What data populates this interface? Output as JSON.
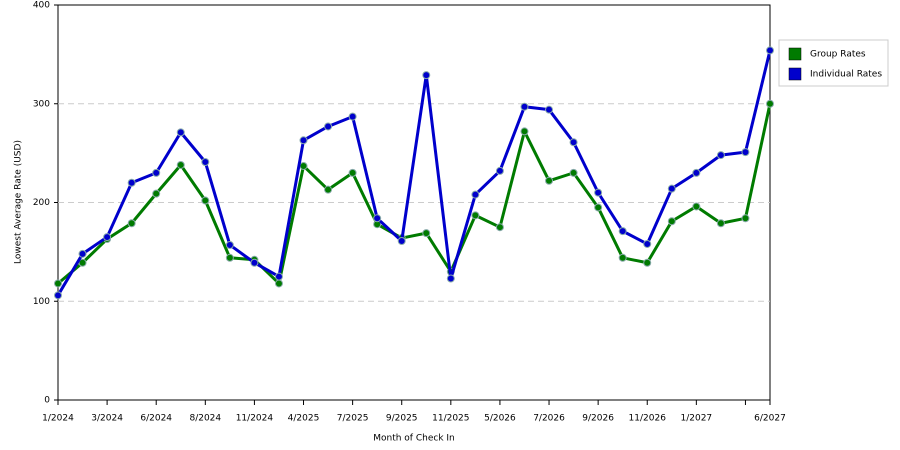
{
  "chart_data": {
    "type": "line",
    "x_label": "Month of Check In",
    "y_label": "Lowest Average Rate (USD)",
    "categories": [
      "1/2024",
      null,
      "3/2024",
      null,
      "6/2024",
      null,
      "8/2024",
      null,
      "11/2024",
      null,
      "4/2025",
      null,
      "7/2025",
      null,
      "9/2025",
      null,
      "11/2025",
      null,
      "5/2026",
      null,
      "7/2026",
      null,
      "9/2026",
      null,
      "11/2026",
      null,
      "1/2027",
      null,
      null,
      "6/2027"
    ],
    "series": [
      {
        "name": "Group Rates",
        "color": "#007b00",
        "values": [
          118,
          139,
          163,
          179,
          209,
          238,
          202,
          144,
          142,
          118,
          237,
          213,
          230,
          178,
          164,
          169,
          130,
          187,
          175,
          272,
          222,
          230,
          195,
          144,
          139,
          181,
          196,
          179,
          184,
          300
        ]
      },
      {
        "name": "Individual Rates",
        "color": "#0000cc",
        "values": [
          106,
          148,
          165,
          220,
          230,
          271,
          241,
          157,
          139,
          125,
          263,
          277,
          287,
          184,
          161,
          329,
          123,
          208,
          232,
          297,
          294,
          261,
          210,
          171,
          158,
          214,
          230,
          248,
          251,
          354
        ]
      }
    ],
    "ylim": [
      0,
      400
    ],
    "yticks": [
      0,
      100,
      200,
      300,
      400
    ],
    "grid": true,
    "legend": "right"
  }
}
